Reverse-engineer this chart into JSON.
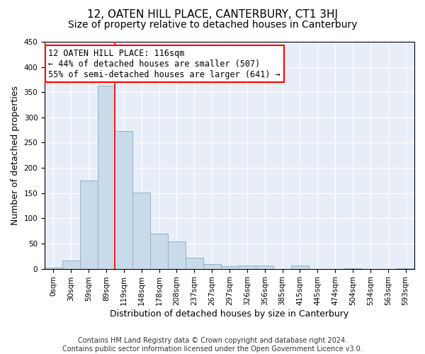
{
  "title": "12, OATEN HILL PLACE, CANTERBURY, CT1 3HJ",
  "subtitle": "Size of property relative to detached houses in Canterbury",
  "xlabel": "Distribution of detached houses by size in Canterbury",
  "ylabel": "Number of detached properties",
  "footer_line1": "Contains HM Land Registry data © Crown copyright and database right 2024.",
  "footer_line2": "Contains public sector information licensed under the Open Government Licence v3.0.",
  "bar_labels": [
    "0sqm",
    "30sqm",
    "59sqm",
    "89sqm",
    "119sqm",
    "148sqm",
    "178sqm",
    "208sqm",
    "237sqm",
    "267sqm",
    "297sqm",
    "326sqm",
    "356sqm",
    "385sqm",
    "415sqm",
    "445sqm",
    "474sqm",
    "504sqm",
    "534sqm",
    "563sqm",
    "593sqm"
  ],
  "bar_values": [
    2,
    16,
    175,
    363,
    273,
    151,
    70,
    54,
    22,
    9,
    5,
    6,
    6,
    0,
    7,
    0,
    0,
    1,
    0,
    0,
    1
  ],
  "bar_color": "#c9daea",
  "bar_edge_color": "#8ab4cc",
  "ylim": [
    0,
    450
  ],
  "yticks": [
    0,
    50,
    100,
    150,
    200,
    250,
    300,
    350,
    400,
    450
  ],
  "red_line_x": 4,
  "annotation_text_line1": "12 OATEN HILL PLACE: 116sqm",
  "annotation_text_line2": "← 44% of detached houses are smaller (507)",
  "annotation_text_line3": "55% of semi-detached houses are larger (641) →",
  "bg_color": "#e8eef8",
  "grid_color": "#ffffff",
  "fig_bg_color": "#ffffff",
  "title_fontsize": 11,
  "subtitle_fontsize": 10,
  "axis_label_fontsize": 9,
  "tick_fontsize": 7.5,
  "annotation_fontsize": 8.5,
  "footer_fontsize": 7
}
